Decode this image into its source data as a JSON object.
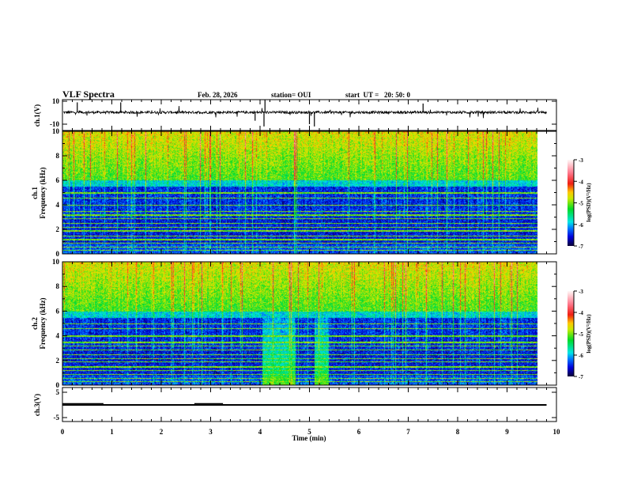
{
  "chart_data": {
    "type": "heatmap",
    "header": {
      "title": "VLF Spectra",
      "date": "Feb. 28, 2026",
      "station": "station= OUI",
      "start": "start  UT =   20: 50: 0"
    },
    "xlabel": "Time  (min)",
    "xlim": [
      0,
      10
    ],
    "xticks": [
      "0",
      "1",
      "2",
      "3",
      "4",
      "5",
      "6",
      "7",
      "8",
      "9",
      "10"
    ],
    "data_end_min": 9.8,
    "panels": {
      "ch1": {
        "ylabel": "ch.1(V)",
        "ylim": [
          -10,
          10
        ],
        "yticks": [
          "10",
          "-10"
        ],
        "baseline": 0.3
      },
      "spec1": {
        "ylabel": "ch.1\nFrequency  (kHz)",
        "ylabel_top": "ch.1",
        "ylabel_bottom": "Frequency  (kHz)",
        "ylim": [
          0,
          10
        ],
        "yticks": [
          "0",
          "2",
          "4",
          "6",
          "8",
          "10"
        ]
      },
      "spec2": {
        "ylabel_top": "ch.2",
        "ylabel_bottom": "Frequency  (kHz)",
        "ylim": [
          0,
          10
        ],
        "yticks": [
          "0",
          "2",
          "4",
          "6",
          "8",
          "10"
        ],
        "enhanced_intervals_min": [
          [
            4.2,
            4.9
          ],
          [
            5.3,
            5.6
          ]
        ]
      },
      "ch3": {
        "ylabel": "ch.3(V)",
        "ylim": [
          -5,
          5
        ],
        "yticks": [
          "5",
          "-5"
        ],
        "level": 0,
        "high_segments_min": [
          [
            0,
            0.83
          ],
          [
            2.67,
            3.25
          ]
        ],
        "high_level": 0.4
      }
    },
    "colorbar": {
      "label": "log(PSD)(V²/Hz)",
      "range": [
        -7,
        -3
      ],
      "ticks": [
        "-3",
        "-4",
        "-5",
        "-6",
        "-7"
      ]
    }
  }
}
